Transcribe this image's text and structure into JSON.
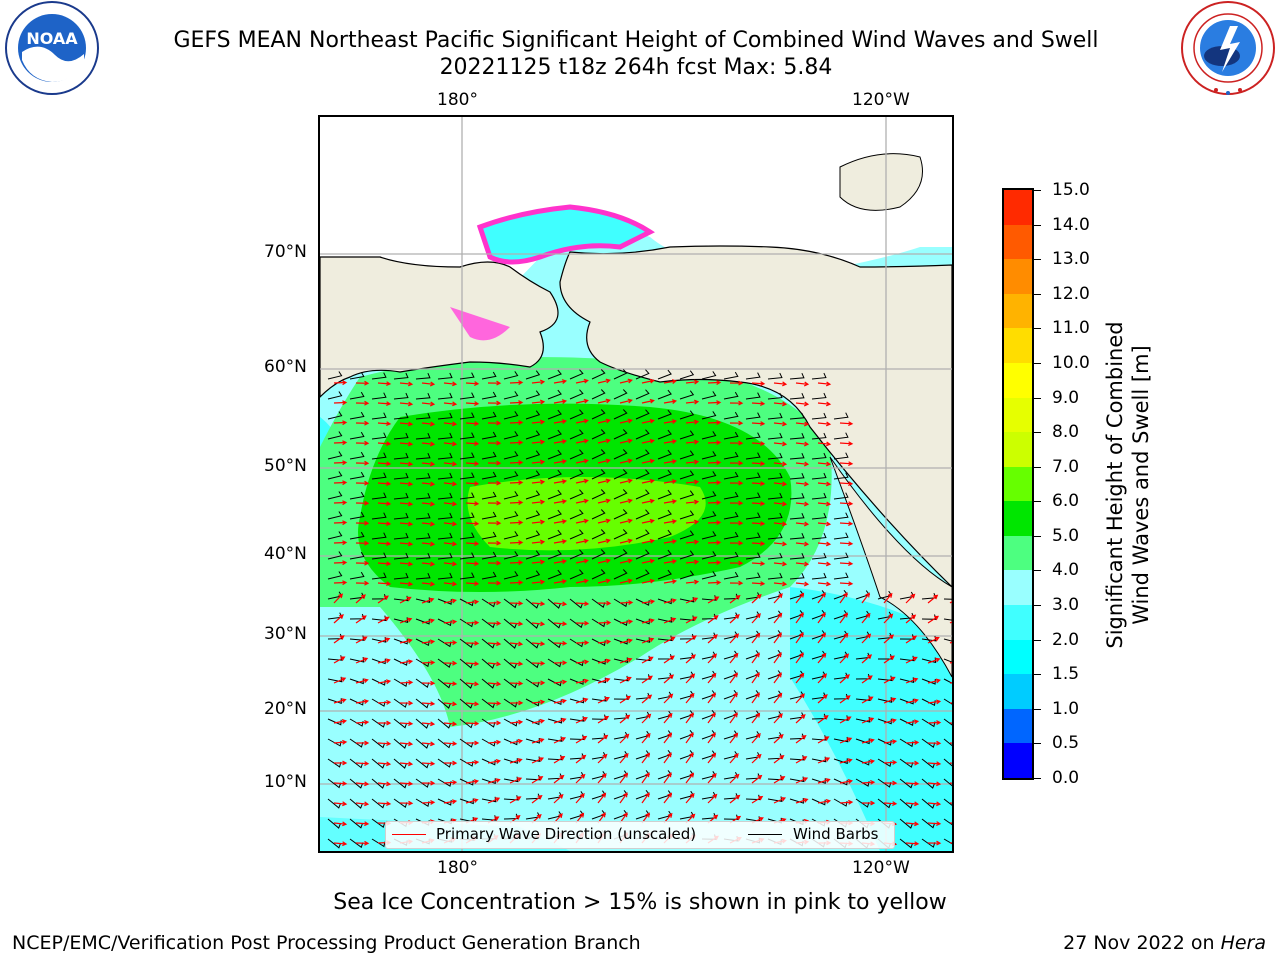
{
  "title": {
    "line1": "GEFS MEAN Northeast Pacific Significant Height of Combined Wind Waves and Swell",
    "line2": "20221125 t18z 264h fcst   Max: 5.84"
  },
  "logos": {
    "left": {
      "text": "NOAA",
      "ring_text": "NATIONAL OCEANIC AND ATMOSPHERIC ADMINISTRATION · U.S. DEPARTMENT OF COMMERCE"
    },
    "right": {
      "ring_text": "NATIONAL WEATHER SERVICE"
    }
  },
  "map": {
    "top_ticks": [
      "180°",
      "120°W"
    ],
    "bottom_ticks": [
      "180°",
      "120°W"
    ],
    "lat_ticks": [
      "70°N",
      "60°N",
      "50°N",
      "40°N",
      "30°N",
      "20°N",
      "10°N"
    ],
    "legend": {
      "wave_direction": "Primary Wave Direction (unscaled)",
      "wind_barbs": "Wind Barbs"
    }
  },
  "colorbar": {
    "title_line1": "Significant Height of Combined",
    "title_line2": "Wind Waves and Swell [m]",
    "labels": [
      "15.0",
      "14.0",
      "13.0",
      "12.0",
      "11.0",
      "10.0",
      "9.0",
      "8.0",
      "7.0",
      "6.0",
      "5.0",
      "4.0",
      "3.0",
      "2.0",
      "1.5",
      "1.0",
      "0.5",
      "0.0"
    ],
    "bins_bottom_to_top": [
      "#0000ff",
      "#0066ff",
      "#00ccff",
      "#00ffff",
      "#40ffff",
      "#99ffff",
      "#4dff80",
      "#00e600",
      "#66ff00",
      "#ccff00",
      "#e6ff00",
      "#ffff00",
      "#ffdd00",
      "#ffb300",
      "#ff8c00",
      "#ff5a00",
      "#ff2a00"
    ]
  },
  "note": "Sea Ice Concentration > 15% is shown in pink to yellow",
  "footer": {
    "left": "NCEP/EMC/Verification Post Processing Product Generation Branch",
    "date": "27 Nov 2022 on ",
    "host": "Hera"
  }
}
